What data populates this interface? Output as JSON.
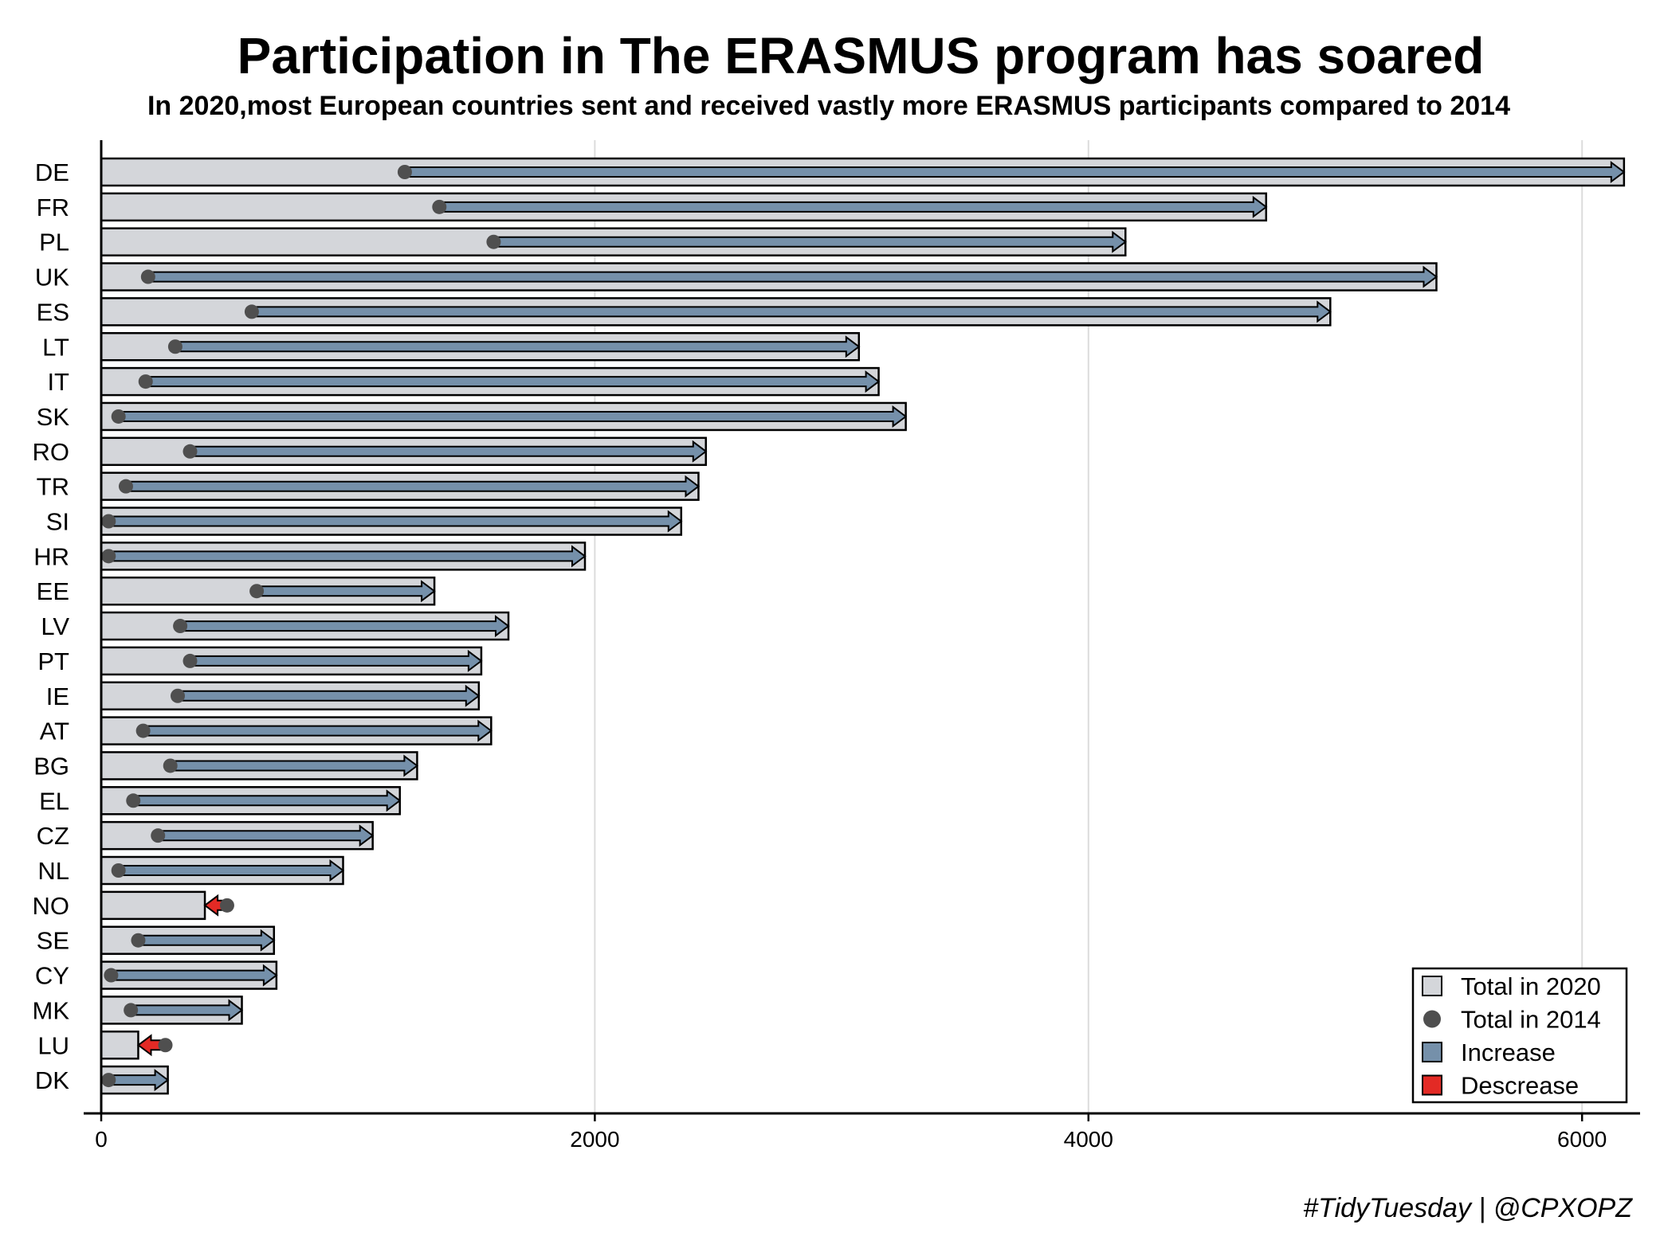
{
  "chart_data": {
    "type": "bar",
    "title": "Participation in The ERASMUS program has soared",
    "subtitle": "In 2020,most European countries sent and received vastly more ERASMUS participants compared to 2014",
    "caption": "#TidyTuesday | @CPXOPZ",
    "xlabel": "",
    "ylabel": "",
    "xlim": [
      0,
      6200
    ],
    "xticks": [
      "0",
      "2000",
      "4000",
      "6000"
    ],
    "grid": "vertical",
    "legend_position": "bottom-right",
    "categories": [
      "DE",
      "FR",
      "PL",
      "UK",
      "ES",
      "LT",
      "IT",
      "SK",
      "RO",
      "TR",
      "SI",
      "HR",
      "EE",
      "LV",
      "PT",
      "IE",
      "AT",
      "BG",
      "EL",
      "CZ",
      "NL",
      "NO",
      "SE",
      "CY",
      "MK",
      "LU",
      "DK"
    ],
    "series": [
      {
        "name": "Total in 2020",
        "values": [
          6170,
          4720,
          4150,
          5410,
          4980,
          3070,
          3150,
          3260,
          2450,
          2420,
          2350,
          1960,
          1350,
          1650,
          1540,
          1530,
          1580,
          1280,
          1210,
          1100,
          980,
          420,
          700,
          710,
          570,
          150,
          270
        ]
      },
      {
        "name": "Total in 2014",
        "values": [
          1230,
          1370,
          1590,
          190,
          610,
          300,
          180,
          70,
          360,
          100,
          30,
          30,
          630,
          320,
          360,
          310,
          170,
          280,
          130,
          230,
          70,
          510,
          150,
          40,
          120,
          260,
          30
        ]
      }
    ],
    "legend": [
      {
        "label": "Total in 2020",
        "kind": "bar",
        "color": "#d4d6da"
      },
      {
        "label": "Total in 2014",
        "kind": "dot",
        "color": "#4f4f4f"
      },
      {
        "label": "Increase",
        "kind": "arrow",
        "color": "#7590aa"
      },
      {
        "label": "Descrease",
        "kind": "arrow",
        "color": "#e32a25"
      }
    ],
    "colors": {
      "bar_fill": "#d4d6da",
      "dot": "#4f4f4f",
      "increase": "#7590aa",
      "decrease": "#e32a25",
      "grid": "#dcdcdc"
    }
  }
}
